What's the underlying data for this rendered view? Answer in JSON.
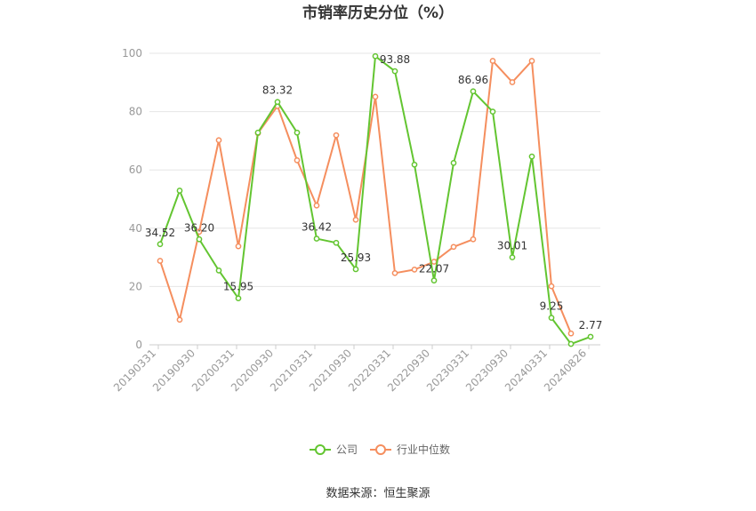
{
  "chart_data": {
    "type": "line",
    "title": "市销率历史分位（%）",
    "source": "数据来源：恒生聚源",
    "ylim": [
      0,
      100
    ],
    "yticks": [
      0,
      20,
      40,
      60,
      80,
      100
    ],
    "xticks": [
      "20190331",
      "20190930",
      "20200331",
      "20200930",
      "20210331",
      "20210930",
      "20220331",
      "20220930",
      "20230331",
      "20230930",
      "20240331",
      "20240826"
    ],
    "grid": true,
    "legend_position": "bottom-center",
    "series": [
      {
        "name": "公司",
        "color": "#63c531",
        "values": [
          34.52,
          52.9,
          36.2,
          25.5,
          15.95,
          72.8,
          83.32,
          72.8,
          36.42,
          35.0,
          25.93,
          99.0,
          93.88,
          61.8,
          22.07,
          62.4,
          86.96,
          80.0,
          30.01,
          64.6,
          9.25,
          0.3,
          2.77
        ]
      },
      {
        "name": "行业中位数",
        "color": "#f58e5e",
        "values": [
          28.8,
          8.6,
          38.8,
          70.2,
          33.8,
          72.6,
          81.9,
          63.3,
          47.8,
          71.9,
          42.9,
          85.1,
          24.6,
          25.8,
          28.5,
          33.6,
          36.2,
          97.4,
          90.1,
          97.4,
          20.1,
          3.9,
          null
        ]
      }
    ],
    "data_labels": [
      {
        "index": 0,
        "text": "34.52"
      },
      {
        "index": 2,
        "text": "36.20"
      },
      {
        "index": 4,
        "text": "15.95"
      },
      {
        "index": 6,
        "text": "83.32"
      },
      {
        "index": 8,
        "text": "36.42"
      },
      {
        "index": 10,
        "text": "25.93"
      },
      {
        "index": 12,
        "text": "93.88"
      },
      {
        "index": 14,
        "text": "22.07"
      },
      {
        "index": 16,
        "text": "86.96"
      },
      {
        "index": 18,
        "text": "30.01"
      },
      {
        "index": 20,
        "text": "9.25"
      },
      {
        "index": 22,
        "text": "2.77"
      }
    ]
  }
}
